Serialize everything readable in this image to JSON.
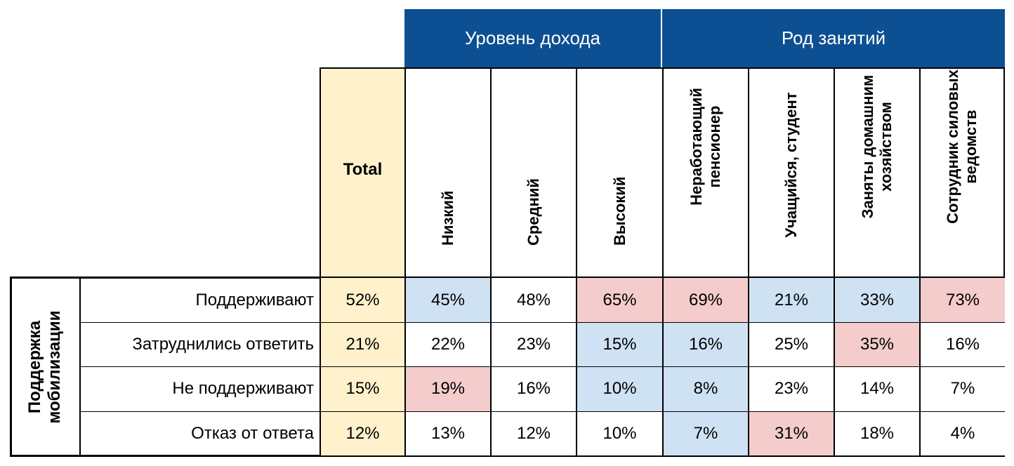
{
  "chart_data": {
    "type": "table",
    "row_group_label": "Поддержка мобилизации",
    "total_label": "Total",
    "column_groups": [
      {
        "name": "Уровень дохода",
        "columns": [
          "Низкий",
          "Средний",
          "Высокий"
        ]
      },
      {
        "name": "Род занятий",
        "columns": [
          "Неработающий пенсионер",
          "Учащийся, студент",
          "Заняты домашним хозяйством",
          "Сотрудник силовых ведомств"
        ]
      }
    ],
    "rows": [
      {
        "label": "Поддерживают",
        "total": "52%",
        "values": [
          "45%",
          "48%",
          "65%",
          "69%",
          "21%",
          "33%",
          "73%"
        ],
        "highlight": [
          "blue",
          "none",
          "red",
          "red",
          "blue",
          "blue",
          "red"
        ]
      },
      {
        "label": "Затруднились ответить",
        "total": "21%",
        "values": [
          "22%",
          "23%",
          "15%",
          "16%",
          "25%",
          "35%",
          "16%"
        ],
        "highlight": [
          "none",
          "none",
          "blue",
          "blue",
          "none",
          "red",
          "none"
        ]
      },
      {
        "label": "Не поддерживают",
        "total": "15%",
        "values": [
          "19%",
          "16%",
          "10%",
          "8%",
          "23%",
          "14%",
          "7%"
        ],
        "highlight": [
          "red",
          "none",
          "blue",
          "blue",
          "none",
          "none",
          "none"
        ]
      },
      {
        "label": "Отказ от ответа",
        "total": "12%",
        "values": [
          "13%",
          "12%",
          "10%",
          "7%",
          "31%",
          "18%",
          "4%"
        ],
        "highlight": [
          "none",
          "none",
          "none",
          "blue",
          "red",
          "none",
          "none"
        ]
      }
    ],
    "colors": {
      "header": "#0d4f93",
      "total": "#fef1cb",
      "blue": "#cfe2f3",
      "red": "#f4cccc"
    }
  }
}
